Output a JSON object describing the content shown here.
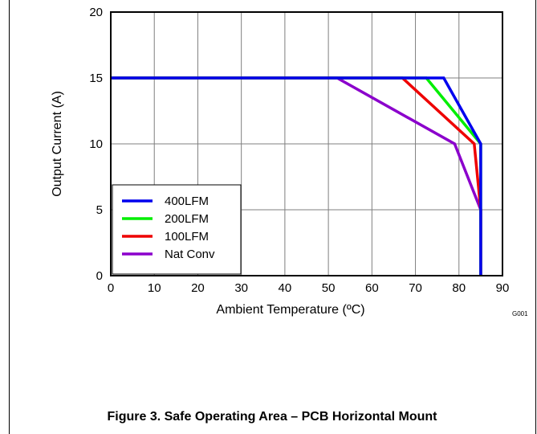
{
  "caption": "Figure 3. Safe Operating Area – PCB Horizontal Mount",
  "figure_id": "G001",
  "chart_data": {
    "type": "line",
    "title": "",
    "xlabel": "Ambient Temperature (ºC)",
    "ylabel": "Output Current (A)",
    "xlim": [
      0,
      90
    ],
    "ylim": [
      0,
      20
    ],
    "xticks": [
      0,
      10,
      20,
      30,
      40,
      50,
      60,
      70,
      80,
      90
    ],
    "yticks": [
      0,
      5,
      10,
      15,
      20
    ],
    "grid": true,
    "legend_position": "bottom-left",
    "series": [
      {
        "name": "400LFM",
        "color": "#0000ee",
        "points": [
          [
            0,
            15
          ],
          [
            76.5,
            15
          ],
          [
            85,
            10
          ],
          [
            85,
            0
          ]
        ]
      },
      {
        "name": "200LFM",
        "color": "#00ee00",
        "points": [
          [
            0,
            15
          ],
          [
            72.5,
            15
          ],
          [
            85,
            10
          ],
          [
            85,
            0
          ]
        ]
      },
      {
        "name": "100LFM",
        "color": "#ee0000",
        "points": [
          [
            0,
            15
          ],
          [
            67,
            15
          ],
          [
            83.5,
            10
          ],
          [
            85,
            5
          ],
          [
            85,
            0
          ]
        ]
      },
      {
        "name": "Nat Conv",
        "color": "#8b00cc",
        "points": [
          [
            0,
            15
          ],
          [
            52,
            15
          ],
          [
            79,
            10
          ],
          [
            85,
            5
          ],
          [
            85,
            0
          ]
        ]
      }
    ]
  }
}
